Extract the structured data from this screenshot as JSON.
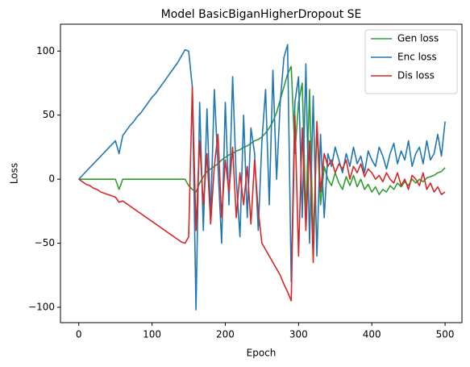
{
  "chart_data": {
    "type": "line",
    "title": "Model BasicBiganHigherDropout SE",
    "xlabel": "Epoch",
    "ylabel": "Loss",
    "x": [
      0,
      5,
      10,
      15,
      20,
      25,
      30,
      35,
      40,
      45,
      50,
      55,
      60,
      65,
      70,
      75,
      80,
      85,
      90,
      95,
      100,
      105,
      110,
      115,
      120,
      125,
      130,
      135,
      140,
      145,
      150,
      155,
      160,
      165,
      170,
      175,
      180,
      185,
      190,
      195,
      200,
      205,
      210,
      215,
      220,
      225,
      230,
      235,
      240,
      245,
      250,
      255,
      260,
      265,
      270,
      275,
      280,
      285,
      290,
      295,
      300,
      305,
      310,
      315,
      320,
      325,
      330,
      335,
      340,
      345,
      350,
      355,
      360,
      365,
      370,
      375,
      380,
      385,
      390,
      395,
      400,
      405,
      410,
      415,
      420,
      425,
      430,
      435,
      440,
      445,
      450,
      455,
      460,
      465,
      470,
      475,
      480,
      485,
      490,
      495,
      500
    ],
    "series": [
      {
        "name": "Gen loss",
        "color": "#2ca02c",
        "values": [
          0,
          0,
          0,
          0,
          0,
          0,
          0,
          0,
          0,
          0,
          0,
          -8,
          0,
          0,
          0,
          0,
          0,
          0,
          0,
          0,
          0,
          0,
          0,
          0,
          0,
          0,
          0,
          0,
          0,
          0,
          -5,
          -8,
          -10,
          -3,
          2,
          6,
          8,
          10,
          12,
          15,
          17,
          19,
          20,
          22,
          23,
          25,
          26,
          28,
          30,
          31,
          33,
          36,
          40,
          45,
          52,
          62,
          72,
          82,
          88,
          20,
          60,
          75,
          -30,
          70,
          -50,
          40,
          -20,
          10,
          0,
          -5,
          5,
          -3,
          -8,
          2,
          -5,
          3,
          -6,
          0,
          -8,
          -4,
          -10,
          -6,
          -12,
          -8,
          -10,
          -5,
          -8,
          -3,
          -6,
          -2,
          -5,
          0,
          -3,
          0,
          -2,
          1,
          2,
          3,
          5,
          6,
          9
        ]
      },
      {
        "name": "Enc loss",
        "color": "#1f77b4",
        "values": [
          0,
          3,
          6,
          9,
          12,
          15,
          18,
          21,
          24,
          27,
          30,
          20,
          34,
          38,
          42,
          45,
          49,
          52,
          56,
          60,
          64,
          67,
          71,
          75,
          79,
          83,
          87,
          91,
          96,
          101,
          100,
          72,
          -102,
          60,
          -40,
          55,
          -30,
          70,
          10,
          -50,
          60,
          -20,
          80,
          0,
          -45,
          50,
          -30,
          40,
          20,
          -40,
          30,
          70,
          -20,
          85,
          0,
          60,
          95,
          105,
          -80,
          60,
          80,
          -30,
          90,
          -50,
          65,
          -60,
          35,
          -30,
          20,
          10,
          25,
          15,
          5,
          20,
          10,
          25,
          12,
          18,
          5,
          22,
          15,
          10,
          25,
          18,
          8,
          20,
          28,
          12,
          22,
          15,
          30,
          10,
          20,
          25,
          12,
          30,
          15,
          20,
          35,
          18,
          45
        ]
      },
      {
        "name": "Dis loss",
        "color": "#d62728",
        "values": [
          0,
          -2,
          -4,
          -5,
          -7,
          -8,
          -10,
          -11,
          -12,
          -13,
          -14,
          -18,
          -17,
          -19,
          -21,
          -23,
          -25,
          -27,
          -29,
          -31,
          -33,
          -35,
          -37,
          -39,
          -41,
          -43,
          -45,
          -47,
          -49,
          -50,
          -45,
          72,
          -40,
          30,
          -20,
          20,
          -35,
          10,
          35,
          -30,
          15,
          -10,
          25,
          -30,
          5,
          -20,
          10,
          -35,
          15,
          -25,
          -50,
          -55,
          -60,
          -65,
          -70,
          -75,
          -82,
          -88,
          -95,
          50,
          -60,
          40,
          -40,
          30,
          -65,
          45,
          -10,
          20,
          10,
          15,
          5,
          12,
          8,
          15,
          0,
          10,
          5,
          12,
          2,
          8,
          5,
          0,
          3,
          -2,
          5,
          0,
          -3,
          5,
          -5,
          0,
          -8,
          3,
          0,
          -5,
          5,
          -8,
          -3,
          -10,
          -6,
          -12,
          -10
        ]
      }
    ],
    "xlim": [
      -25,
      523
    ],
    "ylim": [
      -112,
      121
    ],
    "xticks": [
      0,
      100,
      200,
      300,
      400,
      500
    ],
    "yticks": [
      {
        "value": -100,
        "label": "−100"
      },
      {
        "value": -50,
        "label": "−50"
      },
      0,
      50,
      100
    ],
    "legend": "upper right"
  }
}
